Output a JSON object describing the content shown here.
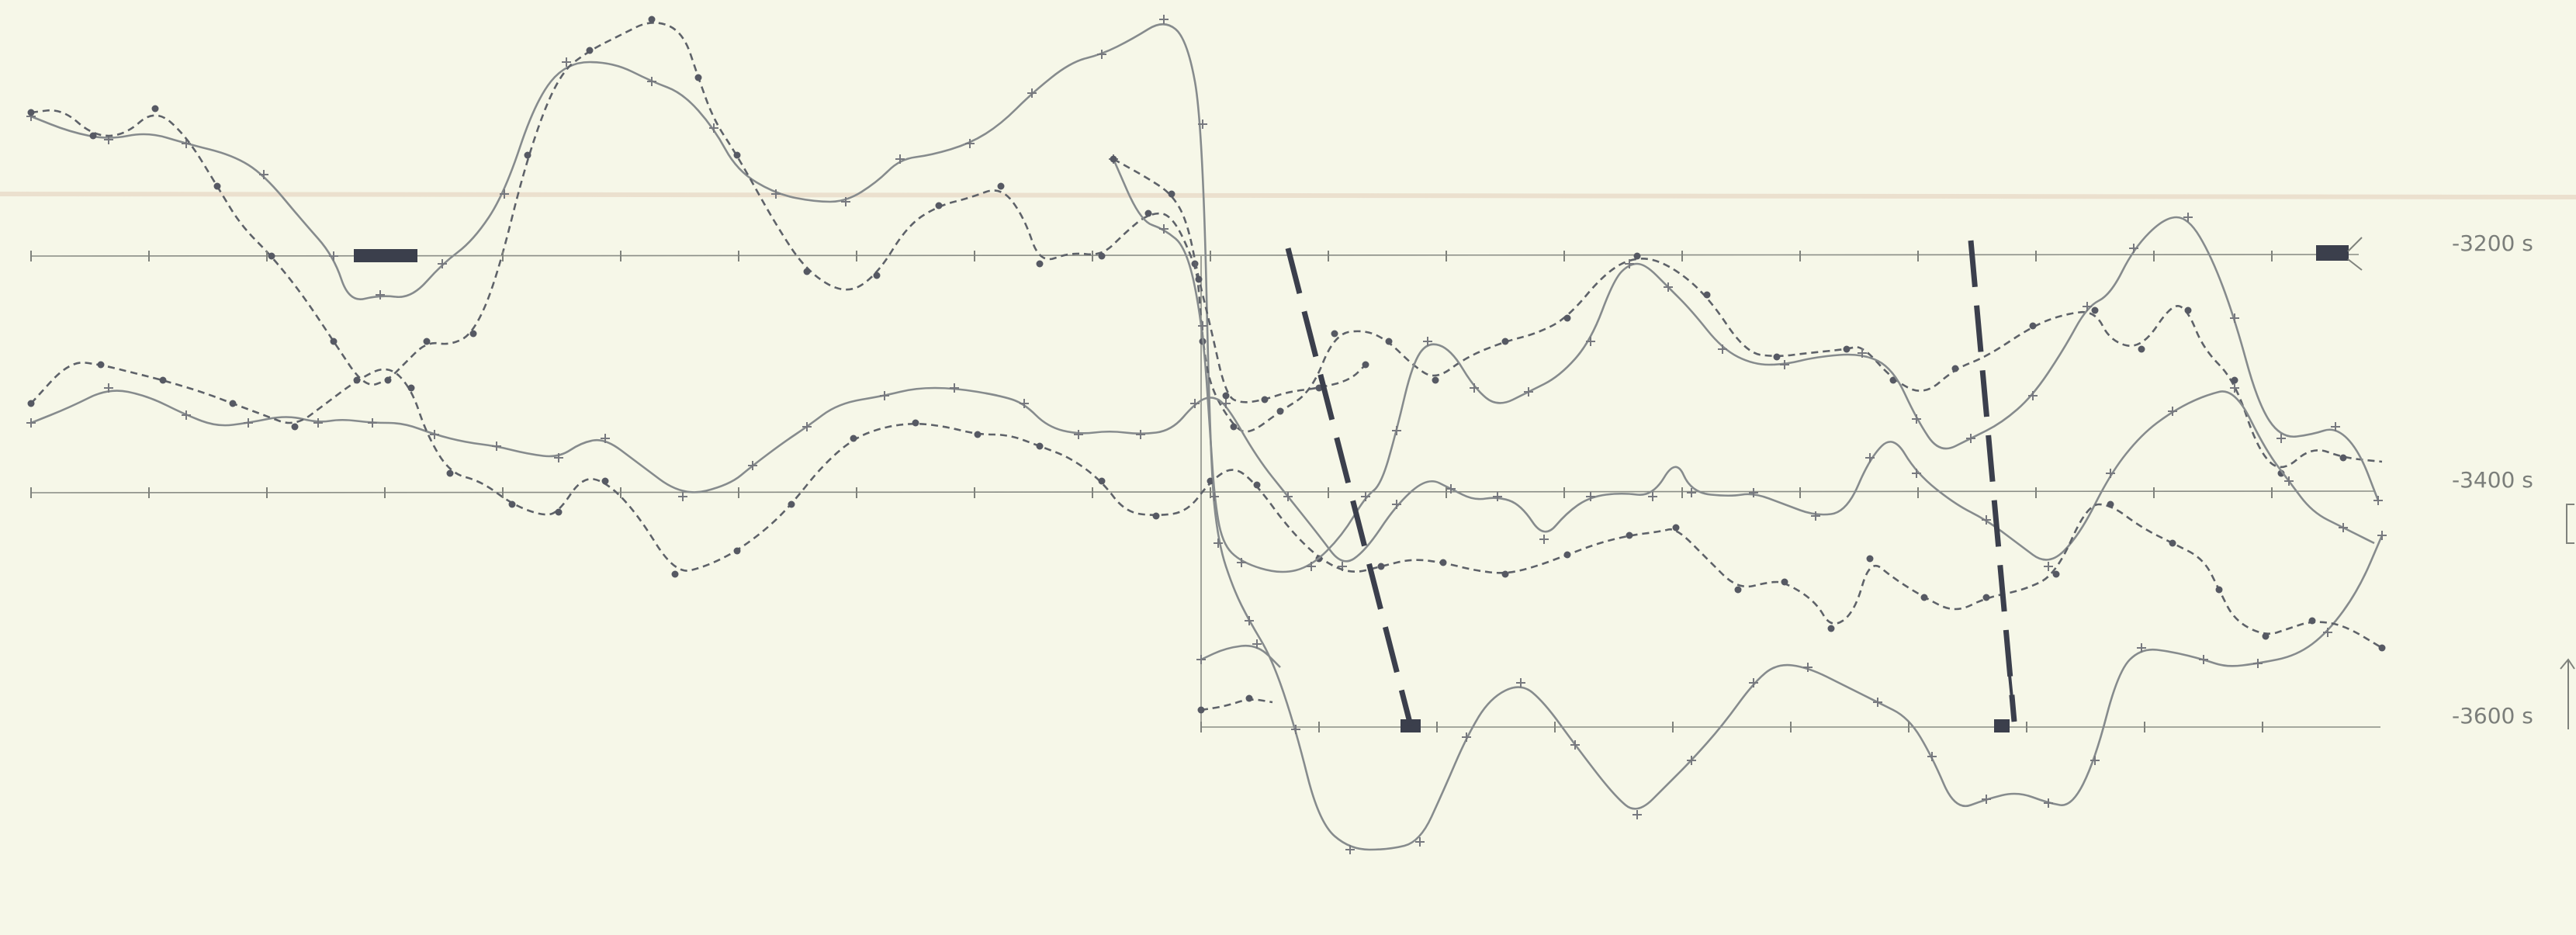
{
  "reference_labels": {
    "upper": "-3200 s",
    "middle": "-3400 s",
    "lower": "-3600 s"
  },
  "colors": {
    "paper": "#f6f7e8",
    "trace_solid": "#868b8d",
    "trace_dashed": "#5e6269",
    "markers": "#3b3f4c"
  }
}
